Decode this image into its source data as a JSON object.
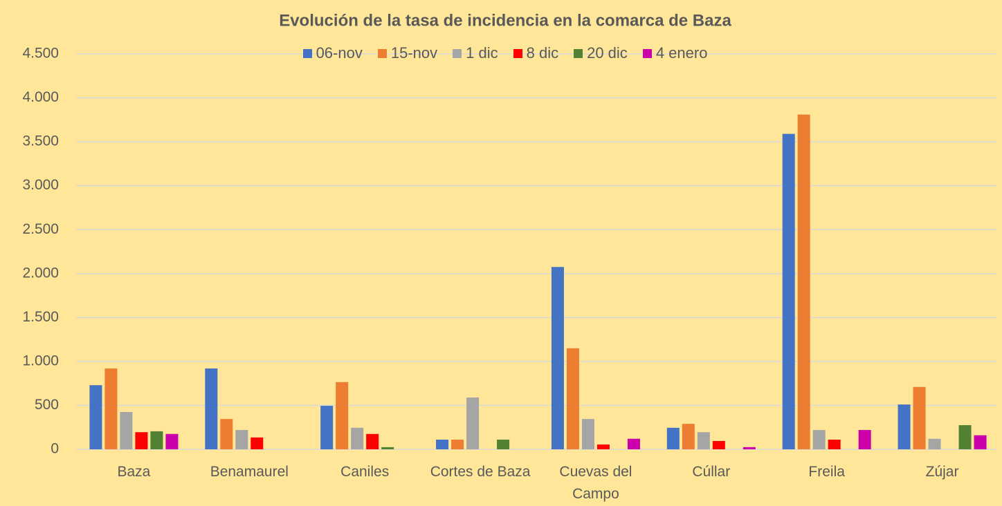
{
  "chart_data": {
    "type": "bar",
    "title": "Evolución de la tasa de incidencia en la comarca de Baza",
    "categories": [
      "Baza",
      "Benamaurel",
      "Caniles",
      "Cortes de Baza",
      "Cuevas del Campo",
      "Cúllar",
      "Freila",
      "Zújar"
    ],
    "series": [
      {
        "name": "06-nov",
        "color": "#4472c4",
        "values": [
          730,
          920,
          495,
          110,
          2075,
          245,
          3590,
          510
        ]
      },
      {
        "name": "15-nov",
        "color": "#ed7d31",
        "values": [
          920,
          345,
          765,
          110,
          1150,
          290,
          3810,
          710
        ]
      },
      {
        "name": "1 dic",
        "color": "#a5a5a5",
        "values": [
          425,
          220,
          245,
          590,
          345,
          195,
          220,
          120
        ]
      },
      {
        "name": "8 dic",
        "color": "#ff0000",
        "values": [
          195,
          135,
          175,
          0,
          55,
          95,
          110,
          0
        ]
      },
      {
        "name": "20 dic",
        "color": "#548235",
        "values": [
          205,
          0,
          25,
          110,
          0,
          0,
          0,
          275
        ]
      },
      {
        "name": "4 enero",
        "color": "#cc00aa",
        "values": [
          175,
          0,
          0,
          0,
          120,
          25,
          220,
          160
        ]
      }
    ],
    "ylim": [
      0,
      4500
    ],
    "yticks": [
      0,
      500,
      {
        "value": 1000,
        "label": "1.000"
      },
      {
        "value": 1500,
        "label": "1.500"
      },
      {
        "value": 2000,
        "label": "2.000"
      },
      {
        "value": 2500,
        "label": "2.500"
      },
      {
        "value": 3000,
        "label": "3.000"
      },
      {
        "value": 3500,
        "label": "3.500"
      },
      {
        "value": 4000,
        "label": "4.000"
      },
      {
        "value": 4500,
        "label": "4.500"
      }
    ],
    "grid": true,
    "legend": "top"
  }
}
